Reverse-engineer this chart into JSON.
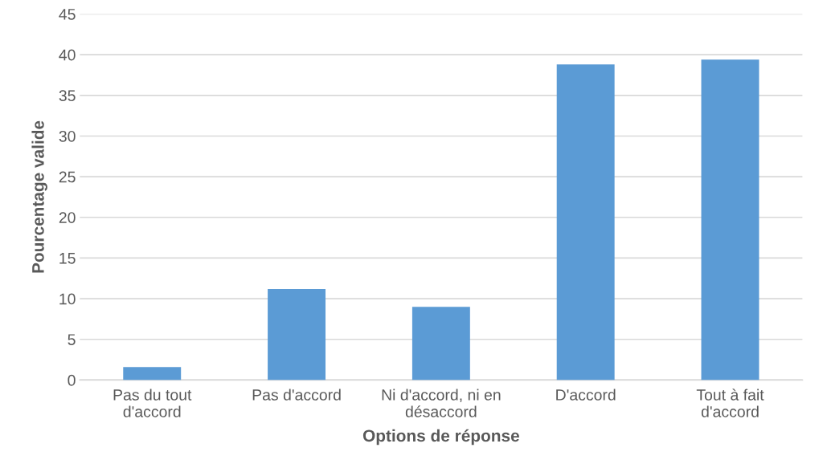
{
  "chart_data": {
    "type": "bar",
    "xlabel": "Options de réponse",
    "ylabel": "Pourcentage valide",
    "categories": [
      "Pas du tout d'accord",
      "Pas d'accord",
      "Ni d'accord, ni en désaccord",
      "D'accord",
      "Tout à fait d'accord"
    ],
    "values": [
      1.6,
      11.2,
      9.0,
      38.8,
      39.4
    ],
    "color": "#5b9bd5",
    "ylim": [
      0,
      45
    ],
    "yticks": [
      0,
      5,
      10,
      15,
      20,
      25,
      30,
      35,
      40,
      45
    ],
    "grid": "y",
    "legend": false
  }
}
